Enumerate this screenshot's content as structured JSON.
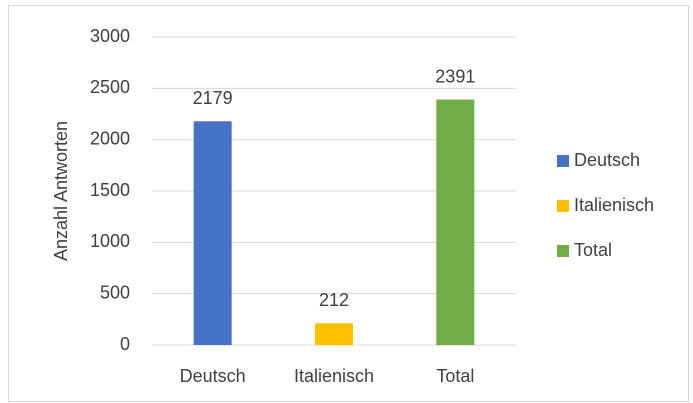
{
  "chart_data": {
    "type": "bar",
    "y_label": "Anzahl Antworten",
    "categories": [
      "Deutsch",
      "Italienisch",
      "Total"
    ],
    "values": [
      2179,
      212,
      2391
    ],
    "colors": [
      "#4472c4",
      "#ffc000",
      "#70ad47"
    ],
    "ylim": [
      0,
      3000
    ],
    "yticks": [
      0,
      500,
      1000,
      1500,
      2000,
      2500,
      3000
    ],
    "grid": true,
    "legend": "right"
  }
}
